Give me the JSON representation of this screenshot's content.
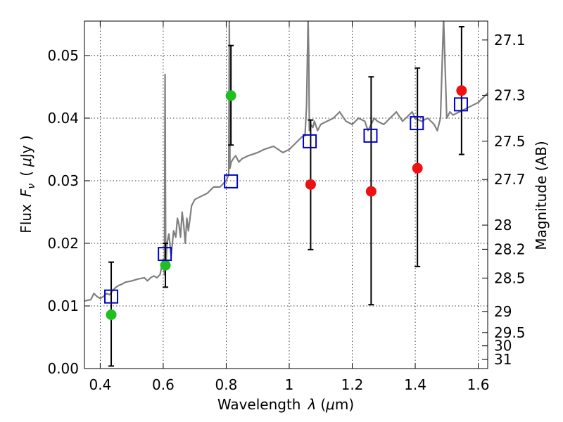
{
  "chart_data": {
    "type": "scatter",
    "xlabel_parts": {
      "name": "Wavelength",
      "symbol": "λ",
      "unit_open": "(",
      "unit_mu": "μ",
      "unit_rest": "m)"
    },
    "ylabel_parts": {
      "name": "Flux",
      "symbol": "F",
      "subscript": "ν",
      "unit_open": "(",
      "unit_mu": "μ",
      "unit_rest": "Jy )"
    },
    "y2label": "Magnitude (AB)",
    "xlim": [
      0.35,
      1.63
    ],
    "ylim": [
      0.0,
      0.0555
    ],
    "grid": true,
    "x_ticks": [
      0.4,
      0.6,
      0.8,
      1.0,
      1.2,
      1.4,
      1.6
    ],
    "x_tick_labels": [
      "0.4",
      "0.6",
      "0.8",
      "1",
      "1.2",
      "1.4",
      "1.6"
    ],
    "y_ticks": [
      0.0,
      0.01,
      0.02,
      0.03,
      0.04,
      0.05
    ],
    "y_tick_labels": [
      "0.00",
      "0.01",
      "0.02",
      "0.03",
      "0.04",
      "0.05"
    ],
    "y2_ticks": [
      27.1,
      27.3,
      27.5,
      27.7,
      28,
      28.2,
      28.5,
      29,
      29.5,
      30,
      31
    ],
    "y2_tick_labels": [
      "27.1",
      "27.3",
      "27.5",
      "27.7",
      "28",
      "28.2",
      "28.5",
      "29",
      "29.5",
      "30",
      "31"
    ],
    "colors": {
      "spectrum": "#808080",
      "model": "#0000cc",
      "green": "#1fbf1f",
      "red": "#ee1111",
      "errorbar": "#000000"
    },
    "series": [
      {
        "kind": "spectrum",
        "x": [
          0.35,
          0.37,
          0.38,
          0.39,
          0.4,
          0.41,
          0.42,
          0.43,
          0.44,
          0.45,
          0.46,
          0.47,
          0.48,
          0.5,
          0.52,
          0.54,
          0.55,
          0.56,
          0.57,
          0.58,
          0.59,
          0.6,
          0.604,
          0.606,
          0.608,
          0.612,
          0.618,
          0.625,
          0.633,
          0.64,
          0.645,
          0.65,
          0.655,
          0.66,
          0.665,
          0.67,
          0.675,
          0.68,
          0.69,
          0.7,
          0.72,
          0.74,
          0.76,
          0.78,
          0.8,
          0.808,
          0.81,
          0.812,
          0.816,
          0.822,
          0.83,
          0.84,
          0.85,
          0.87,
          0.9,
          0.92,
          0.95,
          0.98,
          1.0,
          1.02,
          1.03,
          1.04,
          1.05,
          1.055,
          1.06,
          1.062,
          1.064,
          1.068,
          1.075,
          1.08,
          1.09,
          1.1,
          1.12,
          1.14,
          1.16,
          1.18,
          1.2,
          1.22,
          1.24,
          1.25,
          1.26,
          1.27,
          1.28,
          1.3,
          1.32,
          1.34,
          1.36,
          1.37,
          1.38,
          1.39,
          1.4,
          1.42,
          1.44,
          1.46,
          1.47,
          1.48,
          1.49,
          1.5,
          1.51,
          1.52,
          1.54,
          1.56,
          1.58,
          1.6,
          1.62,
          1.63
        ],
        "y": [
          0.0108,
          0.011,
          0.012,
          0.0115,
          0.0112,
          0.0115,
          0.012,
          0.0118,
          0.0125,
          0.013,
          0.0133,
          0.0135,
          0.0138,
          0.014,
          0.0143,
          0.0145,
          0.014,
          0.0145,
          0.0148,
          0.0145,
          0.015,
          0.0175,
          0.015,
          0.047,
          0.016,
          0.02,
          0.0215,
          0.018,
          0.022,
          0.021,
          0.024,
          0.023,
          0.021,
          0.025,
          0.023,
          0.02,
          0.024,
          0.022,
          0.026,
          0.027,
          0.0275,
          0.028,
          0.029,
          0.029,
          0.03,
          0.031,
          0.056,
          0.032,
          0.033,
          0.0335,
          0.034,
          0.033,
          0.0335,
          0.034,
          0.0345,
          0.035,
          0.0355,
          0.0345,
          0.035,
          0.036,
          0.0365,
          0.037,
          0.0372,
          0.042,
          0.056,
          0.05,
          0.038,
          0.039,
          0.0385,
          0.0395,
          0.038,
          0.039,
          0.0395,
          0.04,
          0.041,
          0.0395,
          0.039,
          0.04,
          0.0395,
          0.038,
          0.039,
          0.04,
          0.0395,
          0.039,
          0.04,
          0.041,
          0.0395,
          0.04,
          0.0405,
          0.041,
          0.04,
          0.0395,
          0.04,
          0.039,
          0.038,
          0.04,
          0.056,
          0.04,
          0.041,
          0.0405,
          0.041,
          0.0415,
          0.042,
          0.0425,
          0.0435,
          0.044
        ]
      },
      {
        "kind": "model",
        "marker": "open-square",
        "x": [
          0.435,
          0.605,
          0.815,
          1.065,
          1.258,
          1.405,
          1.545
        ],
        "y": [
          0.0115,
          0.0183,
          0.0299,
          0.0363,
          0.0372,
          0.0392,
          0.0422
        ]
      },
      {
        "kind": "observed-detection",
        "marker": "circle",
        "x": [
          0.435,
          0.607,
          0.815
        ],
        "y": [
          0.0086,
          0.0165,
          0.0436
        ],
        "yerr_low": [
          0.0082,
          0.0035,
          0.0079
        ],
        "yerr_high": [
          0.0084,
          0.0035,
          0.008
        ]
      },
      {
        "kind": "observed-upper",
        "marker": "circle",
        "x": [
          1.068,
          1.26,
          1.407,
          1.547
        ],
        "y": [
          0.0294,
          0.0283,
          0.032,
          0.0444
        ],
        "yerr_low": [
          0.0104,
          0.0181,
          0.0157,
          0.0102
        ],
        "yerr_high": [
          0.0103,
          0.0183,
          0.016,
          0.0102
        ]
      }
    ]
  }
}
